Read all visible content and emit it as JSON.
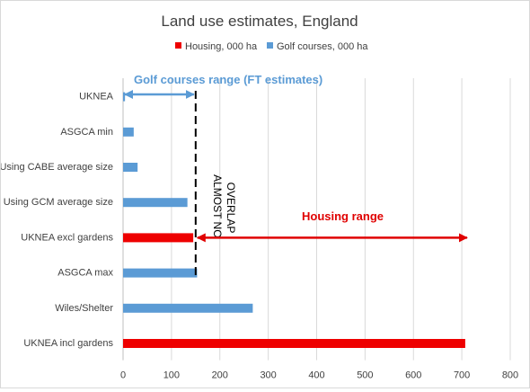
{
  "chart_data": {
    "type": "bar",
    "orientation": "horizontal",
    "title": "Land use estimates, England",
    "xlabel": "",
    "ylabel": "",
    "xlim": [
      0,
      800
    ],
    "xticks": [
      0,
      100,
      200,
      300,
      400,
      500,
      600,
      700,
      800
    ],
    "grid": "vertical",
    "legend_position": "top",
    "categories": [
      "UKNEA",
      "ASGCA min",
      "Using CABE average size",
      "Using GCM average size",
      "UKNEA excl gardens",
      "ASGCA max",
      "Wiles/Shelter",
      "UKNEA incl gardens"
    ],
    "series": [
      {
        "name": "Housing, 000 ha",
        "color": "#ee0000",
        "values": [
          null,
          null,
          null,
          null,
          145,
          null,
          null,
          707
        ]
      },
      {
        "name": "Golf courses, 000 ha",
        "color": "#5b9bd5",
        "values": [
          4,
          22,
          30,
          133,
          null,
          153,
          268,
          null
        ]
      }
    ],
    "annotations": {
      "golf_range": {
        "label": "Golf courses range (FT estimates)",
        "from": 0,
        "to": 150,
        "color": "#5b9bd5"
      },
      "housing_range": {
        "label": "Housing range",
        "from": 150,
        "to": 707,
        "color": "#e00000"
      },
      "overlap_line": {
        "x": 150,
        "label_lines": [
          "ALMOST NO",
          "OVERLAP"
        ]
      }
    }
  }
}
